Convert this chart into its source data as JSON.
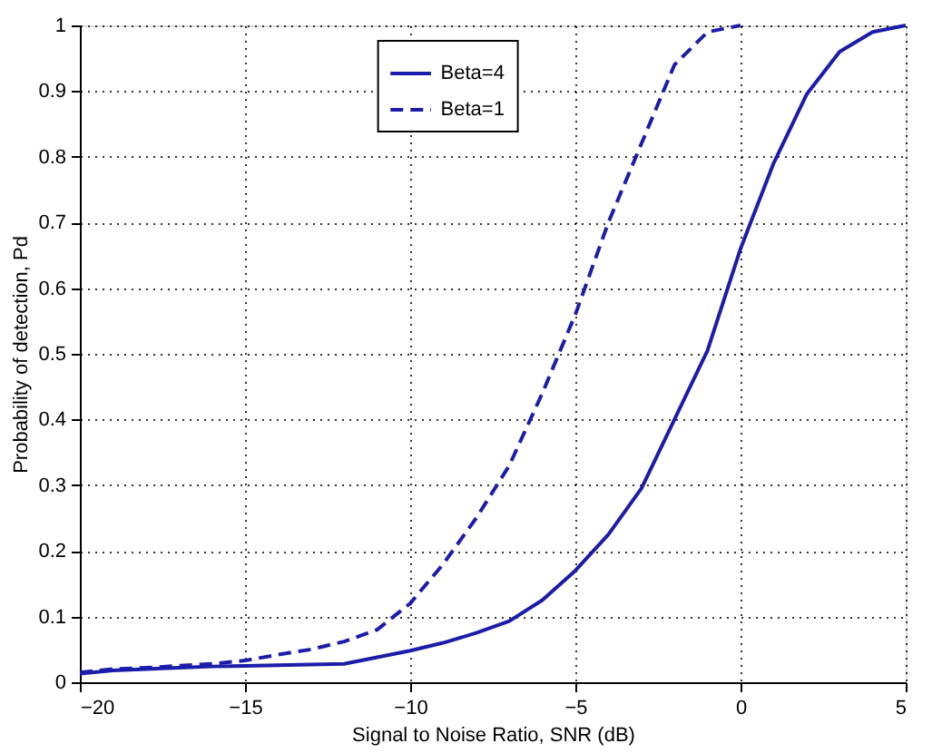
{
  "chart_data": {
    "type": "line",
    "xlabel": "Signal to Noise Ratio, SNR (dB)",
    "ylabel": "Probability of detection, Pd",
    "x": [
      -20,
      -19,
      -18,
      -17,
      -16,
      -15,
      -14,
      -13,
      -12,
      -11,
      -10,
      -9,
      -8,
      -7,
      -6,
      -5,
      -4,
      -3,
      -2,
      -1,
      0,
      1,
      2,
      3,
      4,
      5
    ],
    "series": [
      {
        "name": "Beta=4",
        "color": "#1c1caa",
        "line_style": "solid",
        "values": [
          0.013,
          0.018,
          0.02,
          0.022,
          0.024,
          0.025,
          0.026,
          0.027,
          0.028,
          0.038,
          0.048,
          0.06,
          0.075,
          0.093,
          0.125,
          0.17,
          0.225,
          0.295,
          0.4,
          0.505,
          0.66,
          0.79,
          0.895,
          0.96,
          0.99,
          1.0
        ]
      },
      {
        "name": "Beta=1",
        "color": "#1c1caa",
        "line_style": "dashed",
        "values": [
          0.015,
          0.02,
          0.022,
          0.025,
          0.028,
          0.033,
          0.042,
          0.05,
          0.062,
          0.08,
          0.12,
          0.18,
          0.25,
          0.33,
          0.44,
          0.56,
          0.7,
          0.82,
          0.94,
          0.99,
          1.0,
          null,
          null,
          null,
          null,
          null
        ]
      }
    ],
    "xlim": [
      -20,
      5
    ],
    "xticks": [
      -20,
      -15,
      -10,
      -5,
      0,
      5
    ],
    "ylim": [
      0,
      1
    ],
    "yticks": [
      0,
      0.1,
      0.2,
      0.3,
      0.4,
      0.5,
      0.6,
      0.7,
      0.8,
      0.9,
      1
    ],
    "grid": true,
    "legend": "top",
    "marker": "none"
  }
}
